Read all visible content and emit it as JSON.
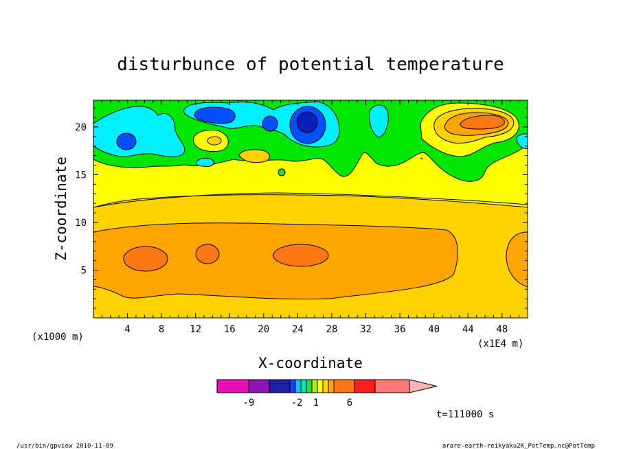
{
  "chart_data": {
    "type": "heatmap",
    "title": "disturbunce of potential temperature",
    "xlabel": "X-coordinate",
    "ylabel": "Z-coordinate",
    "x_unit_left": "(x1000 m)",
    "x_unit_right": "(x1E4 m)",
    "x_ticks": [
      "4",
      "8",
      "12",
      "16",
      "20",
      "24",
      "28",
      "32",
      "36",
      "40",
      "44",
      "48"
    ],
    "y_ticks": [
      "5",
      "10",
      "15",
      "20"
    ],
    "xlim": [
      0,
      51
    ],
    "ylim": [
      0,
      22.8
    ],
    "time_label": "t=111000 s",
    "colorbar": {
      "colors": [
        "#e60fb4",
        "#8c14b4",
        "#1e1ea0",
        "#1e3cff",
        "#00c8ff",
        "#00e6b4",
        "#3cd23c",
        "#aaf01e",
        "#ffff00",
        "#ffd700",
        "#ffa500",
        "#ff7814",
        "#ff1e1e",
        "#ff7878",
        "#ffb4b4"
      ],
      "labels": [
        "-9",
        "-2",
        "1",
        "6"
      ]
    },
    "regions": [
      {
        "color": "#ffd200",
        "label": "lower band"
      },
      {
        "color": "#ffa500",
        "label": "mid orange band"
      },
      {
        "color": "#ff7814",
        "label": "warm cores"
      },
      {
        "color": "#ffff00",
        "label": "yellow band"
      },
      {
        "color": "#00e600",
        "label": "green upper region"
      },
      {
        "color": "#00f0ff",
        "label": "cyan pockets"
      },
      {
        "color": "#0050ff",
        "label": "blue cores"
      },
      {
        "color": "#0a1ebe",
        "label": "dark blue cores"
      }
    ]
  },
  "footer": {
    "left": "/usr/bin/gpview  2010-11-09",
    "right": "arare-earth-reikyaku2K_PotTemp.nc@PotTemp"
  }
}
